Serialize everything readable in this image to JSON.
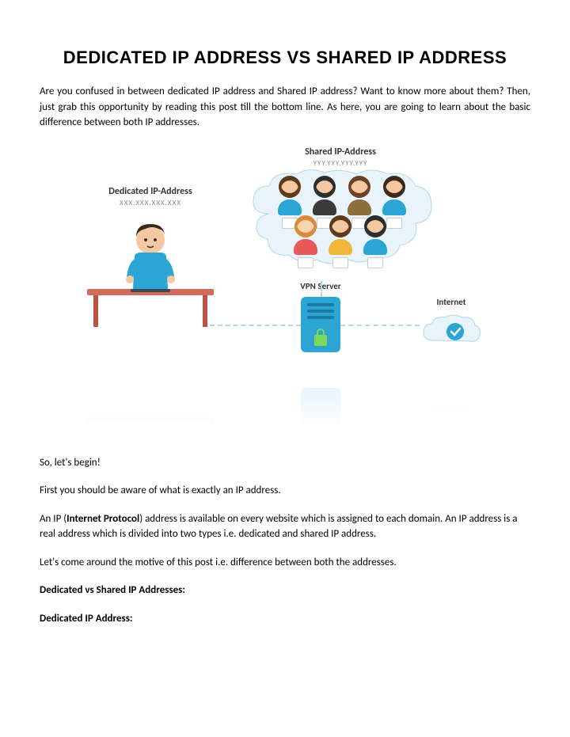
{
  "title": "Dedicated IP Address vs Shared IP Address",
  "intro": "Are you confused in between dedicated IP address and Shared IP address? Want to know more about them? Then, just grab this opportunity by reading this post till the bottom line. As here, you are going to learn about the basic difference between both IP addresses.",
  "diagram": {
    "dedicated_label": "Dedicated IP-Address",
    "dedicated_sub": "XXX.XXX.XXX.XXX",
    "shared_label": "Shared IP-Address",
    "shared_sub": "YYY.YYY.YYY.YYY",
    "vpn_label": "VPN Server",
    "internet_label": "Internet",
    "avatars": {
      "row1": [
        {
          "hair": "#5b3a1e",
          "skin": "#f4c8a0",
          "body": "#2ca5d4"
        },
        {
          "hair": "#2d2d2d",
          "skin": "#f4c8a0",
          "body": "#3a3a3a"
        },
        {
          "hair": "#6b4226",
          "skin": "#f4c8a0",
          "body": "#8b6f3e"
        },
        {
          "hair": "#3a2a1a",
          "skin": "#f4c8a0",
          "body": "#2ca5d4"
        }
      ],
      "row2": [
        {
          "hair": "#d88a3a",
          "skin": "#f8d4b0",
          "body": "#e85a5a"
        },
        {
          "hair": "#5b3a1e",
          "skin": "#f4c8a0",
          "body": "#f0b838"
        },
        {
          "hair": "#2d2d2d",
          "skin": "#f4c8a0",
          "body": "#2ca5d4"
        }
      ]
    },
    "person": {
      "hair": "#3a2a1a",
      "skin": "#f4c8a0",
      "shirt": "#2ca5d4"
    },
    "desk_color": "#d46a5a",
    "server_color": "#2ca5d4",
    "lock_color": "#7fd858",
    "check_color": "#2ca5d4",
    "cloud_fill": "#e8f4fa",
    "cloud_stroke": "#b0d8e8"
  },
  "body": {
    "p1": "So, let's begin!",
    "p2": "First you should be aware of what is exactly an IP address.",
    "p3_pre": "An IP (",
    "p3_bold": "Internet Protocol",
    "p3_post": ") address is available on every website which is assigned to each domain. An IP address is a real address which is divided into two types i.e. dedicated and shared IP address.",
    "p4": "Let's come around the motive of this post i.e. difference between both the addresses.",
    "h1": "Dedicated vs Shared IP Addresses:",
    "h2": "Dedicated IP Address:"
  }
}
